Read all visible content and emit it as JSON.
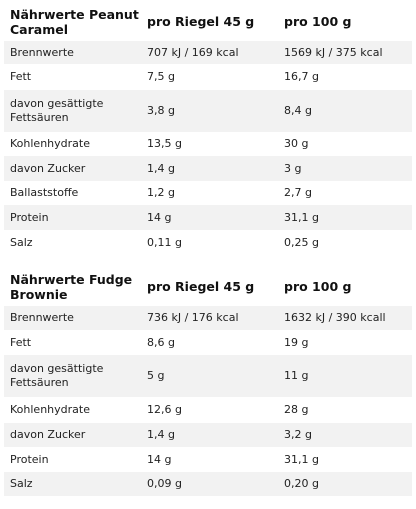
{
  "tables": [
    {
      "title": "Nährwerte Peanut Caramel",
      "col_serving": "pro Riegel 45 g",
      "col_100g": "pro 100 g",
      "rows": [
        {
          "label": "Brennwerte",
          "serving": "707 kJ / 169 kcal",
          "per100": "1569 kJ / 375 kcal"
        },
        {
          "label": "Fett",
          "serving": "7,5 g",
          "per100": "16,7 g"
        },
        {
          "label": "davon gesättigte Fettsäuren",
          "serving": "3,8 g",
          "per100": "8,4 g"
        },
        {
          "label": "Kohlenhydrate",
          "serving": "13,5 g",
          "per100": "30 g"
        },
        {
          "label": "davon Zucker",
          "serving": "1,4 g",
          "per100": "3 g"
        },
        {
          "label": "Ballaststoffe",
          "serving": "1,2 g",
          "per100": "2,7 g"
        },
        {
          "label": "Protein",
          "serving": "14 g",
          "per100": "31,1 g"
        },
        {
          "label": "Salz",
          "serving": "0,11 g",
          "per100": "0,25 g"
        }
      ]
    },
    {
      "title": "Nährwerte Fudge Brownie",
      "col_serving": "pro Riegel 45 g",
      "col_100g": "pro 100 g",
      "rows": [
        {
          "label": "Brennwerte",
          "serving": "736 kJ / 176 kcal",
          "per100": "1632 kJ / 390 kcall"
        },
        {
          "label": "Fett",
          "serving": "8,6 g",
          "per100": "19 g"
        },
        {
          "label": "davon gesättigte Fettsäuren",
          "serving": "5 g",
          "per100": "11 g"
        },
        {
          "label": "Kohlenhydrate",
          "serving": "12,6 g",
          "per100": "28 g"
        },
        {
          "label": "davon Zucker",
          "serving": "1,4 g",
          "per100": "3,2 g"
        },
        {
          "label": "Protein",
          "serving": "14 g",
          "per100": "31,1 g"
        },
        {
          "label": "Salz",
          "serving": "0,09 g",
          "per100": "0,20 g"
        }
      ]
    }
  ]
}
